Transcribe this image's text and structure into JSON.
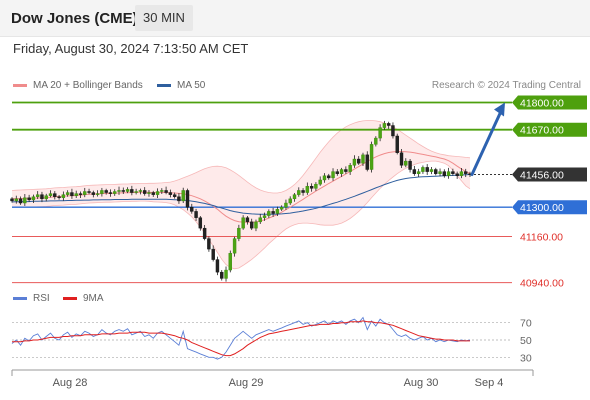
{
  "header": {
    "title": "Dow Jones (CME)",
    "interval": "30 MIN"
  },
  "datetime": "Friday, August 30, 2024 7:13:50 AM CET",
  "legend": {
    "ma20": {
      "label": "MA 20 + Bollinger Bands",
      "color": "#f08c8c"
    },
    "ma50": {
      "label": "MA 50",
      "color": "#2f5f9e"
    }
  },
  "research": "Research © 2024 Trading Central",
  "rsi_legend": {
    "rsi": {
      "label": "RSI",
      "color": "#5b7fd6"
    },
    "ma9": {
      "label": "9MA",
      "color": "#e02020"
    }
  },
  "chart_data": [
    {
      "type": "candlestick",
      "ylim": [
        40900,
        41850
      ],
      "levels": [
        {
          "value": 41800,
          "label": "41800.00",
          "kind": "resistance",
          "color": "#4ea00e"
        },
        {
          "value": 41670,
          "label": "41670.00",
          "kind": "resistance",
          "color": "#4ea00e"
        },
        {
          "value": 41456,
          "label": "41456.00",
          "kind": "current",
          "color": "#333333"
        },
        {
          "value": 41300,
          "label": "41300.00",
          "kind": "pivot",
          "color": "#2f6fd6"
        },
        {
          "value": 41160,
          "label": "41160.00",
          "kind": "support",
          "color": "#e85a5a"
        },
        {
          "value": 40940,
          "label": "40940.00",
          "kind": "support",
          "color": "#e85a5a"
        }
      ],
      "x_ticks": [
        "Aug 28",
        "Aug 29",
        "Aug 30",
        "Sep 4"
      ],
      "close": [
        41330,
        41340,
        41320,
        41345,
        41335,
        41350,
        41360,
        41340,
        41355,
        41365,
        41350,
        41345,
        41360,
        41370,
        41355,
        41365,
        41360,
        41375,
        41370,
        41360,
        41365,
        41380,
        41370,
        41365,
        41375,
        41380,
        41375,
        41385,
        41370,
        41375,
        41380,
        41365,
        41370,
        41360,
        41375,
        41380,
        41370,
        41360,
        41350,
        41330,
        41380,
        41300,
        41280,
        41250,
        41200,
        41150,
        41100,
        41050,
        40990,
        40960,
        41000,
        41080,
        41150,
        41200,
        41250,
        41230,
        41200,
        41230,
        41250,
        41260,
        41280,
        41270,
        41290,
        41300,
        41320,
        41340,
        41360,
        41380,
        41370,
        41400,
        41390,
        41410,
        41430,
        41450,
        41440,
        41470,
        41460,
        41480,
        41470,
        41500,
        41530,
        41510,
        41550,
        41480,
        41600,
        41630,
        41680,
        41700,
        41690,
        41640,
        41560,
        41500,
        41520,
        41480,
        41460,
        41470,
        41490,
        41470,
        41480,
        41460,
        41470,
        41450,
        41470,
        41460,
        41450,
        41470,
        41460,
        41456
      ],
      "ma20": [
        41340,
        41341,
        41341,
        41342,
        41342,
        41343,
        41344,
        41345,
        41346,
        41348,
        41350,
        41351,
        41352,
        41354,
        41355,
        41356,
        41358,
        41360,
        41362,
        41363,
        41364,
        41365,
        41366,
        41366,
        41367,
        41368,
        41369,
        41369,
        41370,
        41370,
        41371,
        41371,
        41371,
        41370,
        41370,
        41370,
        41370,
        41369,
        41368,
        41366,
        41364,
        41360,
        41355,
        41348,
        41340,
        41330,
        41318,
        41305,
        41290,
        41273,
        41257,
        41245,
        41236,
        41231,
        41229,
        41228,
        41228,
        41230,
        41234,
        41240,
        41248,
        41256,
        41265,
        41276,
        41288,
        41300,
        41312,
        41325,
        41338,
        41351,
        41364,
        41377,
        41389,
        41401,
        41413,
        41424,
        41436,
        41447,
        41459,
        41470,
        41482,
        41494,
        41506,
        41518,
        41530,
        41540,
        41549,
        41556,
        41561,
        41564,
        41566,
        41566,
        41565,
        41563,
        41560,
        41556,
        41552,
        41548,
        41544,
        41540,
        41535,
        41530,
        41522,
        41510,
        41496,
        41483,
        41470,
        41462
      ],
      "ma20_upper": [
        41380,
        41381,
        41382,
        41383,
        41384,
        41385,
        41386,
        41387,
        41388,
        41390,
        41392,
        41393,
        41394,
        41396,
        41397,
        41398,
        41400,
        41402,
        41404,
        41405,
        41406,
        41407,
        41408,
        41408,
        41409,
        41410,
        41411,
        41411,
        41412,
        41412,
        41413,
        41413,
        41414,
        41414,
        41415,
        41416,
        41418,
        41420,
        41425,
        41432,
        41440,
        41448,
        41456,
        41465,
        41475,
        41484,
        41490,
        41495,
        41496,
        41494,
        41488,
        41478,
        41466,
        41452,
        41436,
        41420,
        41405,
        41392,
        41382,
        41375,
        41370,
        41368,
        41368,
        41372,
        41380,
        41392,
        41408,
        41428,
        41452,
        41478,
        41506,
        41534,
        41562,
        41588,
        41612,
        41634,
        41654,
        41670,
        41684,
        41694,
        41702,
        41708,
        41712,
        41714,
        41714,
        41712,
        41708,
        41702,
        41694,
        41684,
        41672,
        41658,
        41644,
        41630,
        41616,
        41602,
        41590,
        41578,
        41568,
        41560,
        41554,
        41550,
        41546,
        41544,
        41542,
        41540,
        41538,
        41536
      ],
      "ma20_lower": [
        41300,
        41301,
        41300,
        41301,
        41300,
        41301,
        41302,
        41303,
        41304,
        41306,
        41308,
        41309,
        41310,
        41312,
        41313,
        41314,
        41316,
        41318,
        41320,
        41321,
        41322,
        41323,
        41324,
        41324,
        41325,
        41326,
        41327,
        41327,
        41328,
        41328,
        41329,
        41329,
        41328,
        41326,
        41325,
        41324,
        41322,
        41318,
        41311,
        41300,
        41288,
        41272,
        41254,
        41231,
        41205,
        41176,
        41146,
        41115,
        41084,
        41052,
        41026,
        41012,
        41006,
        41010,
        41022,
        41036,
        41051,
        41068,
        41086,
        41105,
        41126,
        41144,
        41162,
        41180,
        41196,
        41208,
        41216,
        41222,
        41224,
        41224,
        41222,
        41220,
        41216,
        41214,
        41214,
        41214,
        41218,
        41224,
        41234,
        41246,
        41262,
        41280,
        41300,
        41322,
        41346,
        41368,
        41390,
        41410,
        41428,
        41444,
        41460,
        41474,
        41486,
        41496,
        41504,
        41510,
        41514,
        41518,
        41520,
        41520,
        41516,
        41510,
        41498,
        41476,
        41450,
        41426,
        41402,
        41388
      ],
      "ma50": [
        41325,
        41326,
        41326,
        41327,
        41327,
        41328,
        41328,
        41329,
        41329,
        41330,
        41330,
        41331,
        41331,
        41332,
        41332,
        41333,
        41333,
        41334,
        41334,
        41335,
        41335,
        41336,
        41336,
        41336,
        41337,
        41337,
        41337,
        41337,
        41338,
        41338,
        41338,
        41338,
        41338,
        41338,
        41338,
        41338,
        41338,
        41337,
        41336,
        41335,
        41334,
        41332,
        41329,
        41326,
        41322,
        41318,
        41313,
        41308,
        41302,
        41296,
        41290,
        41284,
        41279,
        41275,
        41272,
        41270,
        41268,
        41267,
        41266,
        41266,
        41266,
        41266,
        41267,
        41268,
        41270,
        41272,
        41275,
        41278,
        41282,
        41286,
        41290,
        41295,
        41300,
        41306,
        41312,
        41318,
        41324,
        41331,
        41338,
        41345,
        41352,
        41360,
        41368,
        41376,
        41384,
        41392,
        41400,
        41408,
        41415,
        41422,
        41428,
        41433,
        41437,
        41440,
        41442,
        41444,
        41445,
        41446,
        41447,
        41448,
        41449,
        41450,
        41451,
        41452,
        41453,
        41454,
        41455,
        41456
      ]
    },
    {
      "type": "line",
      "name_indicator": "RSI",
      "ylim": [
        20,
        80
      ],
      "y_ticks": [
        70,
        50,
        30
      ],
      "rsi": [
        46,
        50,
        44,
        52,
        49,
        55,
        57,
        50,
        54,
        58,
        52,
        50,
        56,
        59,
        53,
        57,
        55,
        60,
        58,
        54,
        56,
        62,
        58,
        56,
        60,
        62,
        60,
        63,
        56,
        58,
        60,
        54,
        56,
        52,
        58,
        60,
        56,
        52,
        48,
        44,
        60,
        40,
        38,
        36,
        34,
        32,
        30,
        30,
        28,
        30,
        36,
        44,
        52,
        56,
        60,
        56,
        52,
        56,
        58,
        60,
        62,
        60,
        62,
        64,
        66,
        68,
        70,
        72,
        68,
        70,
        66,
        68,
        70,
        72,
        68,
        72,
        70,
        72,
        68,
        72,
        74,
        70,
        76,
        62,
        72,
        66,
        74,
        70,
        68,
        62,
        56,
        54,
        56,
        52,
        50,
        52,
        54,
        50,
        52,
        48,
        50,
        48,
        50,
        49,
        48,
        50,
        49,
        50
      ],
      "ma9": [
        48,
        48,
        48,
        49,
        49,
        50,
        50,
        51,
        52,
        53,
        53,
        53,
        54,
        54,
        55,
        55,
        55,
        56,
        56,
        56,
        56,
        57,
        57,
        57,
        57,
        58,
        58,
        58,
        59,
        59,
        59,
        59,
        58,
        58,
        58,
        58,
        57,
        56,
        55,
        53,
        52,
        50,
        47,
        45,
        43,
        41,
        39,
        37,
        35,
        33,
        32,
        32,
        34,
        37,
        40,
        44,
        47,
        50,
        53,
        55,
        57,
        58,
        59,
        60,
        61,
        62,
        63,
        64,
        65,
        66,
        67,
        67,
        68,
        68,
        68,
        69,
        69,
        70,
        70,
        71,
        71,
        71,
        72,
        71,
        71,
        70,
        70,
        69,
        68,
        67,
        65,
        63,
        61,
        59,
        57,
        55,
        54,
        53,
        52,
        51,
        51,
        50,
        50,
        50,
        49,
        49,
        49,
        49
      ]
    }
  ]
}
